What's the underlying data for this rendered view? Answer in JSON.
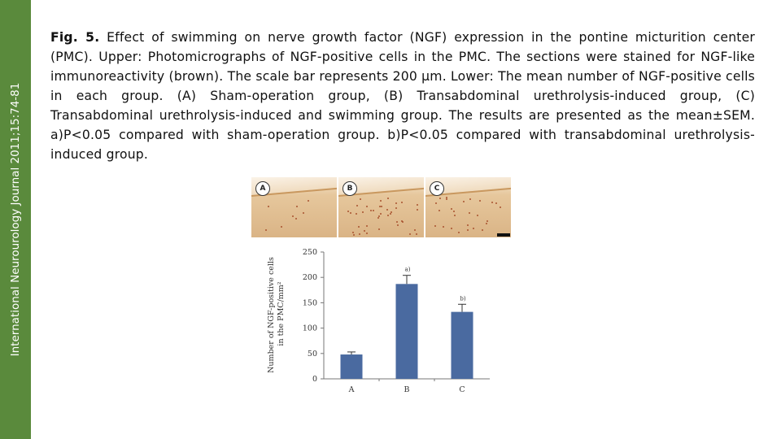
{
  "sidebar": {
    "journal": "International Neurourology Journal 2011;15:74-81"
  },
  "caption": {
    "label": "Fig. 5.",
    "text": "Effect of swimming on nerve growth factor (NGF) expression in the pontine micturition center (PMC). Upper: Photomicrographs of NGF-positive cells in the PMC. The sections were stained for NGF-like immunoreactivity (brown). The scale bar represents 200 μm. Lower: The mean number of NGF-positive cells in each group. (A) Sham-operation group, (B) Transabdominal urethrolysis-induced group, (C) Transabdominal urethrolysis-induced and swimming group. The results are presented as the mean±SEM. a)P<0.05 compared with sham-operation group. b)P<0.05 compared with transabdominal urethrolysis-induced group."
  },
  "micrographs": [
    {
      "label": "A"
    },
    {
      "label": "B"
    },
    {
      "label": "C"
    }
  ],
  "chart_data": {
    "type": "bar",
    "categories": [
      "A",
      "B",
      "C"
    ],
    "values": [
      48,
      187,
      132
    ],
    "errors": [
      5,
      17,
      15
    ],
    "annotations": [
      "",
      "a)",
      "b)"
    ],
    "ylabel_line1": "Number of NGF-positive cells",
    "ylabel_line2": "in the PMC/mm²",
    "ylim": [
      0,
      250
    ],
    "yticks": [
      0,
      50,
      100,
      150,
      200,
      250
    ],
    "bar_color": "#4a6aa0",
    "grid": false
  }
}
